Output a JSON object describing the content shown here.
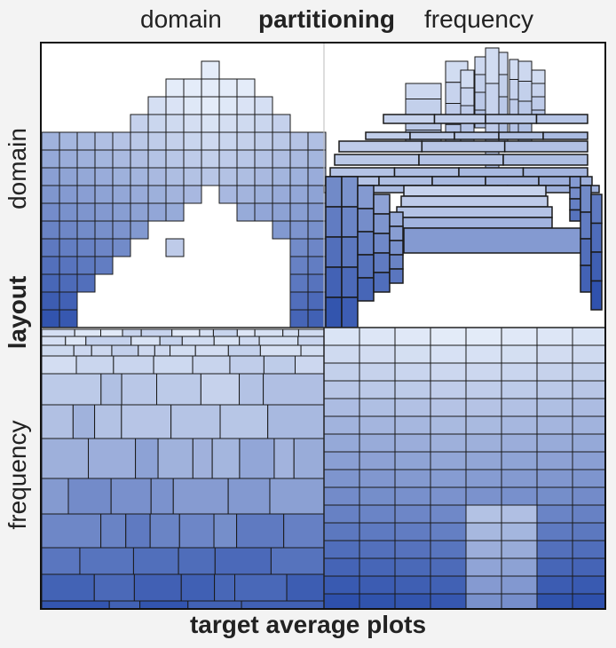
{
  "column_headers": {
    "left": "domain",
    "center": "partitioning",
    "right": "frequency"
  },
  "row_headers": {
    "top": "domain",
    "middle": "layout",
    "bottom": "frequency"
  },
  "footer": "target average plots",
  "colors": {
    "light": "#e4ecf9",
    "dark": "#2448a8",
    "border": "#1a1a1a",
    "background": "#f3f3f3"
  },
  "panels": [
    {
      "name": "domain-partitioning-domain-layout",
      "style": "uniform grid triangle"
    },
    {
      "name": "frequency-partitioning-domain-layout",
      "style": "irregular stacked rectangles"
    },
    {
      "name": "domain-partitioning-frequency-layout",
      "style": "horizontal strips"
    },
    {
      "name": "frequency-partitioning-frequency-layout",
      "style": "regular grid"
    }
  ]
}
